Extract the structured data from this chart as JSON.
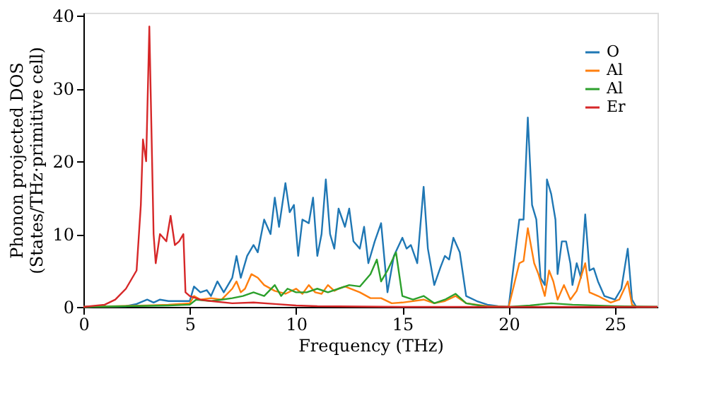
{
  "chart_data": {
    "type": "line",
    "xlabel": "Frequency (THz)",
    "ylabel": "Phonon projected DOS\n(States/THz·primitive cell)",
    "xlim": [
      0,
      27
    ],
    "ylim": [
      0,
      40.4
    ],
    "xticks": [
      0,
      5,
      10,
      15,
      20,
      25
    ],
    "yticks": [
      0,
      10,
      20,
      30,
      40
    ],
    "legend": "top right",
    "grid": false,
    "series": [
      {
        "name": "O",
        "color": "#1f77b4",
        "x": [
          0,
          2,
          2.5,
          3,
          3.3,
          3.6,
          4,
          4.5,
          5,
          5.2,
          5.5,
          5.8,
          6,
          6.3,
          6.6,
          7,
          7.2,
          7.4,
          7.7,
          8,
          8.2,
          8.5,
          8.8,
          9,
          9.2,
          9.5,
          9.7,
          9.9,
          10.1,
          10.3,
          10.6,
          10.8,
          11,
          11.2,
          11.4,
          11.6,
          11.8,
          12,
          12.3,
          12.5,
          12.7,
          13,
          13.2,
          13.4,
          13.7,
          14,
          14.3,
          14.6,
          15,
          15.2,
          15.4,
          15.7,
          16,
          16.2,
          16.5,
          16.8,
          17,
          17.2,
          17.4,
          17.7,
          18,
          18.5,
          19,
          19.5,
          20,
          20.5,
          20.7,
          20.9,
          21.1,
          21.3,
          21.5,
          21.7,
          21.8,
          22,
          22.2,
          22.3,
          22.5,
          22.7,
          22.9,
          23,
          23.2,
          23.4,
          23.6,
          23.8,
          24,
          24.2,
          24.5,
          25,
          25.3,
          25.6,
          25.8,
          26,
          27
        ],
        "values": [
          0,
          0.1,
          0.4,
          1,
          0.6,
          1,
          0.8,
          0.8,
          0.8,
          2.8,
          2,
          2.3,
          1.5,
          3.5,
          2,
          4,
          7,
          4,
          7,
          8.5,
          7.5,
          12,
          10,
          15,
          11,
          17,
          13,
          14,
          7,
          12,
          11.5,
          15,
          7,
          10,
          17.5,
          10,
          8,
          13.5,
          11,
          13.5,
          9,
          8,
          11,
          6,
          9,
          11.5,
          2,
          7,
          9.5,
          8,
          8.5,
          6,
          16.5,
          8,
          3,
          5.5,
          7,
          6.5,
          9.5,
          7.5,
          1.5,
          0.8,
          0.3,
          0.1,
          0,
          12,
          12,
          26,
          14,
          12,
          4,
          3,
          17.5,
          15.5,
          12,
          4.5,
          9,
          9,
          6,
          3,
          6,
          4,
          12.7,
          5,
          5.3,
          3.5,
          1.5,
          1,
          2.5,
          8,
          1,
          0,
          0
        ]
      },
      {
        "name": "Al",
        "color": "#ff7f0e",
        "x": [
          0,
          3,
          4,
          5,
          5.2,
          5.5,
          6,
          6.5,
          7,
          7.2,
          7.4,
          7.6,
          7.9,
          8.2,
          8.5,
          9,
          9.5,
          10,
          10.3,
          10.6,
          10.9,
          11.2,
          11.5,
          11.8,
          12,
          12.3,
          13,
          13.5,
          14,
          14.5,
          15,
          16,
          16.5,
          17,
          17.5,
          18,
          19,
          20,
          20.5,
          20.7,
          20.9,
          21.2,
          21.4,
          21.7,
          21.9,
          22.1,
          22.3,
          22.6,
          22.9,
          23.2,
          23.6,
          23.8,
          24.2,
          24.8,
          25.2,
          25.6,
          25.8,
          26,
          27
        ],
        "values": [
          0,
          0.2,
          0.3,
          0.5,
          1.5,
          1,
          1.2,
          1,
          2.5,
          3.5,
          2,
          2.5,
          4.5,
          4,
          3,
          2.2,
          1.8,
          2.5,
          1.8,
          3,
          2,
          1.8,
          3,
          2.2,
          2.5,
          2.8,
          2,
          1.2,
          1.2,
          0.5,
          0.6,
          1,
          0.5,
          0.8,
          1.5,
          0.5,
          0.1,
          0,
          6,
          6.3,
          10.8,
          6,
          4.5,
          1.5,
          5,
          3.5,
          1,
          3,
          1,
          2.2,
          6,
          2,
          1.5,
          0.6,
          1,
          3.5,
          0.3,
          0,
          0
        ]
      },
      {
        "name": "Al",
        "color": "#2ca02c",
        "x": [
          0,
          4,
          5,
          5.3,
          6,
          6.5,
          7,
          7.5,
          8,
          8.5,
          9,
          9.3,
          9.6,
          10,
          10.5,
          11,
          11.5,
          12,
          12.5,
          13,
          13.5,
          13.8,
          14,
          14.3,
          14.7,
          15,
          15.5,
          16,
          16.5,
          17,
          17.5,
          18,
          19,
          20,
          21,
          22,
          23,
          25,
          27
        ],
        "values": [
          0,
          0.2,
          0.3,
          1,
          0.8,
          1,
          1.2,
          1.5,
          2,
          1.5,
          3,
          1.5,
          2.5,
          2,
          2,
          2.5,
          2,
          2.5,
          3,
          2.8,
          4.5,
          6.5,
          3.5,
          5,
          7.5,
          1.5,
          1,
          1.5,
          0.5,
          1,
          1.8,
          0.5,
          0,
          0,
          0.2,
          0.5,
          0.3,
          0.1,
          0
        ]
      },
      {
        "name": "Er",
        "color": "#d62728",
        "x": [
          0,
          1,
          1.5,
          2,
          2.5,
          2.7,
          2.8,
          2.95,
          3.1,
          3.3,
          3.4,
          3.6,
          3.9,
          4.1,
          4.3,
          4.5,
          4.7,
          4.8,
          5,
          5.5,
          6,
          7,
          8,
          9,
          10,
          11,
          13,
          15,
          27
        ],
        "values": [
          0,
          0.3,
          1,
          2.5,
          5,
          14,
          23,
          20,
          38.5,
          10,
          6,
          10,
          9,
          12.5,
          8.5,
          9,
          10,
          2,
          1.5,
          1,
          0.8,
          0.5,
          0.6,
          0.4,
          0.2,
          0.1,
          0.05,
          0,
          0
        ]
      }
    ]
  }
}
